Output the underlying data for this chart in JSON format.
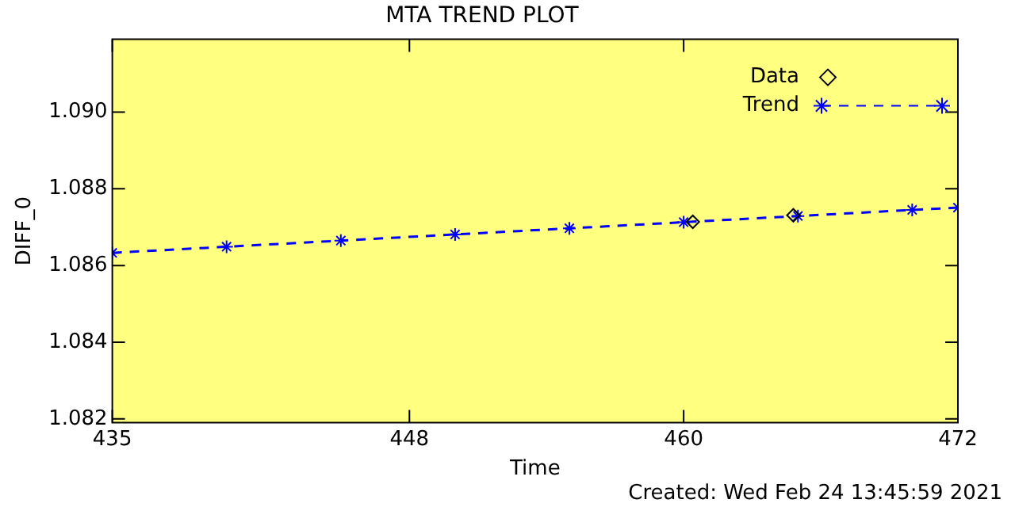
{
  "chart_data": {
    "type": "scatter",
    "title": "MTA TREND PLOT",
    "xlabel": "Time",
    "ylabel": "DIFF_0",
    "annotations": [
      "Created: Wed Feb 24 13:45:59 2021"
    ],
    "xlim": [
      435,
      472
    ],
    "xticks": [
      435,
      448,
      460,
      472
    ],
    "ylim": [
      1.0819,
      1.0919
    ],
    "yticks": [
      1.082,
      1.084,
      1.086,
      1.088,
      {
        "value": 1.09,
        "label": "1.090"
      }
    ],
    "grid": false,
    "legend": "top right",
    "series": [
      {
        "name": "Data",
        "marker": "diamond",
        "color": "#000000",
        "x": [
          460.4,
          464.8
        ],
        "values": [
          1.08714,
          1.08731
        ]
      },
      {
        "name": "Trend",
        "type": "line",
        "marker": "cross",
        "line_style": "dashed",
        "color": "#0000ff",
        "x": [
          435,
          440,
          445,
          450,
          455,
          460,
          465,
          470,
          472
        ],
        "values": [
          1.08633,
          1.08649,
          1.08665,
          1.08681,
          1.08697,
          1.08713,
          1.08729,
          1.08745,
          1.08751
        ]
      }
    ]
  }
}
